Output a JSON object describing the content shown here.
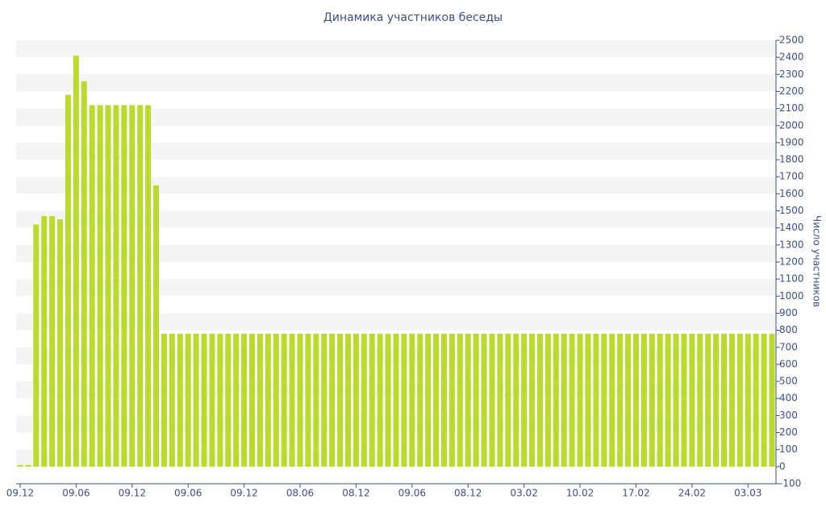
{
  "chart_data": {
    "type": "bar",
    "title": "Динамика участников беседы",
    "y_axis_label": "Число участников",
    "categories": [
      "09.12",
      null,
      null,
      null,
      null,
      null,
      null,
      "09.06",
      null,
      null,
      null,
      null,
      null,
      null,
      "09.12",
      null,
      null,
      null,
      null,
      null,
      null,
      "09.06",
      null,
      null,
      null,
      null,
      null,
      null,
      "09.12",
      null,
      null,
      null,
      null,
      null,
      null,
      "08.06",
      null,
      null,
      null,
      null,
      null,
      null,
      "08.12",
      null,
      null,
      null,
      null,
      null,
      null,
      "09.06",
      null,
      null,
      null,
      null,
      null,
      null,
      "08.12",
      null,
      null,
      null,
      null,
      null,
      null,
      "03.02",
      null,
      null,
      null,
      null,
      null,
      null,
      "10.02",
      null,
      null,
      null,
      null,
      null,
      null,
      "17.02",
      null,
      null,
      null,
      null,
      null,
      null,
      "24.02",
      null,
      null,
      null,
      null,
      null,
      null,
      "03.03",
      null,
      null,
      null
    ],
    "values": [
      10,
      10,
      1420,
      1470,
      1470,
      1450,
      2180,
      2410,
      2260,
      2120,
      2120,
      2120,
      2120,
      2120,
      2120,
      2120,
      2120,
      1650,
      780,
      780,
      780,
      780,
      780,
      780,
      780,
      780,
      780,
      780,
      780,
      780,
      780,
      780,
      780,
      780,
      780,
      780,
      780,
      780,
      780,
      780,
      780,
      780,
      780,
      780,
      780,
      780,
      780,
      780,
      780,
      780,
      780,
      780,
      780,
      780,
      780,
      780,
      780,
      780,
      780,
      780,
      780,
      780,
      780,
      780,
      780,
      780,
      780,
      780,
      780,
      780,
      780,
      780,
      780,
      780,
      780,
      780,
      780,
      780,
      780,
      780,
      780,
      780,
      780,
      780,
      780,
      780,
      780,
      780,
      780,
      780,
      780,
      780,
      780,
      780,
      780
    ],
    "color": "#bada2e",
    "ylim": [
      -100,
      2500
    ],
    "yticks": [
      -100,
      0,
      100,
      200,
      300,
      400,
      500,
      600,
      700,
      800,
      900,
      1000,
      1100,
      1200,
      1300,
      1400,
      1500,
      1600,
      1700,
      1800,
      1900,
      2000,
      2100,
      2200,
      2300,
      2400,
      2500
    ],
    "grid": true
  }
}
